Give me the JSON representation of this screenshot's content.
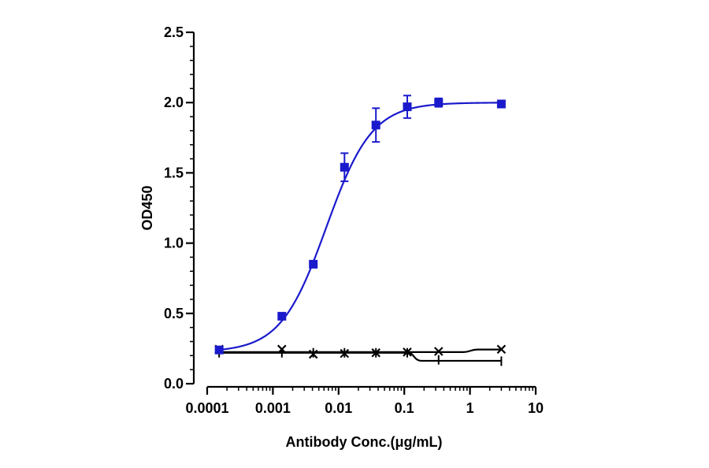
{
  "chart_data": {
    "type": "scatter",
    "title": "",
    "xlabel": "Antibody Conc.(μg/mL)",
    "ylabel": "OD450",
    "xscale": "log",
    "xlim": [
      0.0001,
      10
    ],
    "ylim": [
      0,
      2.5
    ],
    "x_ticks": [
      0.0001,
      0.001,
      0.01,
      0.1,
      1,
      10
    ],
    "x_tick_labels": [
      "0.0001",
      "0.001",
      "0.01",
      "0.1",
      "1",
      "10"
    ],
    "y_ticks": [
      0,
      0.5,
      1.0,
      1.5,
      2.0,
      2.5
    ],
    "y_tick_labels": [
      "0.0",
      "0.5",
      "1.0",
      "1.5",
      "2.0",
      "2.5"
    ],
    "grid": false,
    "legend": "none",
    "series": [
      {
        "color": "#1a1acc",
        "marker": "square",
        "fit": "sigmoid",
        "x": [
          0.000152,
          0.00137,
          0.00412,
          0.0123,
          0.037,
          0.111,
          0.333,
          3.0
        ],
        "y": [
          0.24,
          0.48,
          0.85,
          1.54,
          1.84,
          1.97,
          2.0,
          1.99
        ],
        "err": [
          0.01,
          0.01,
          0.02,
          0.1,
          0.12,
          0.08,
          0.03,
          0.01
        ]
      },
      {
        "color": "#000000",
        "marker": "x",
        "x": [
          0.000152,
          0.00137,
          0.00412,
          0.0123,
          0.037,
          0.111,
          0.333,
          3.0
        ],
        "y": [
          0.245,
          0.245,
          0.21,
          0.215,
          0.22,
          0.225,
          0.23,
          0.245
        ]
      },
      {
        "color": "#000000",
        "marker": "bar",
        "x": [
          0.000152,
          0.00137,
          0.00412,
          0.0123,
          0.037,
          0.111,
          0.333,
          3.0
        ],
        "y": [
          0.22,
          0.22,
          0.22,
          0.22,
          0.22,
          0.22,
          0.17,
          0.16
        ]
      }
    ]
  }
}
